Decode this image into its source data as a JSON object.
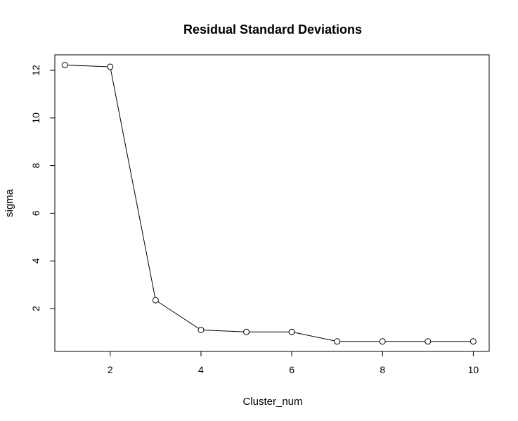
{
  "chart_data": {
    "type": "line",
    "title": "Residual Standard Deviations",
    "xlabel": "Cluster_num",
    "ylabel": "sigma",
    "x": [
      1,
      2,
      3,
      4,
      5,
      6,
      7,
      8,
      9,
      10
    ],
    "y": [
      12.22,
      12.15,
      2.35,
      1.1,
      1.02,
      1.02,
      0.62,
      0.62,
      0.62,
      0.62
    ],
    "xlim": [
      0.78,
      10.35
    ],
    "ylim": [
      0.2,
      12.65
    ],
    "xticks": [
      2,
      4,
      6,
      8,
      10
    ],
    "yticks": [
      2,
      4,
      6,
      8,
      10,
      12
    ],
    "marker": "open-circle",
    "grid": false
  }
}
